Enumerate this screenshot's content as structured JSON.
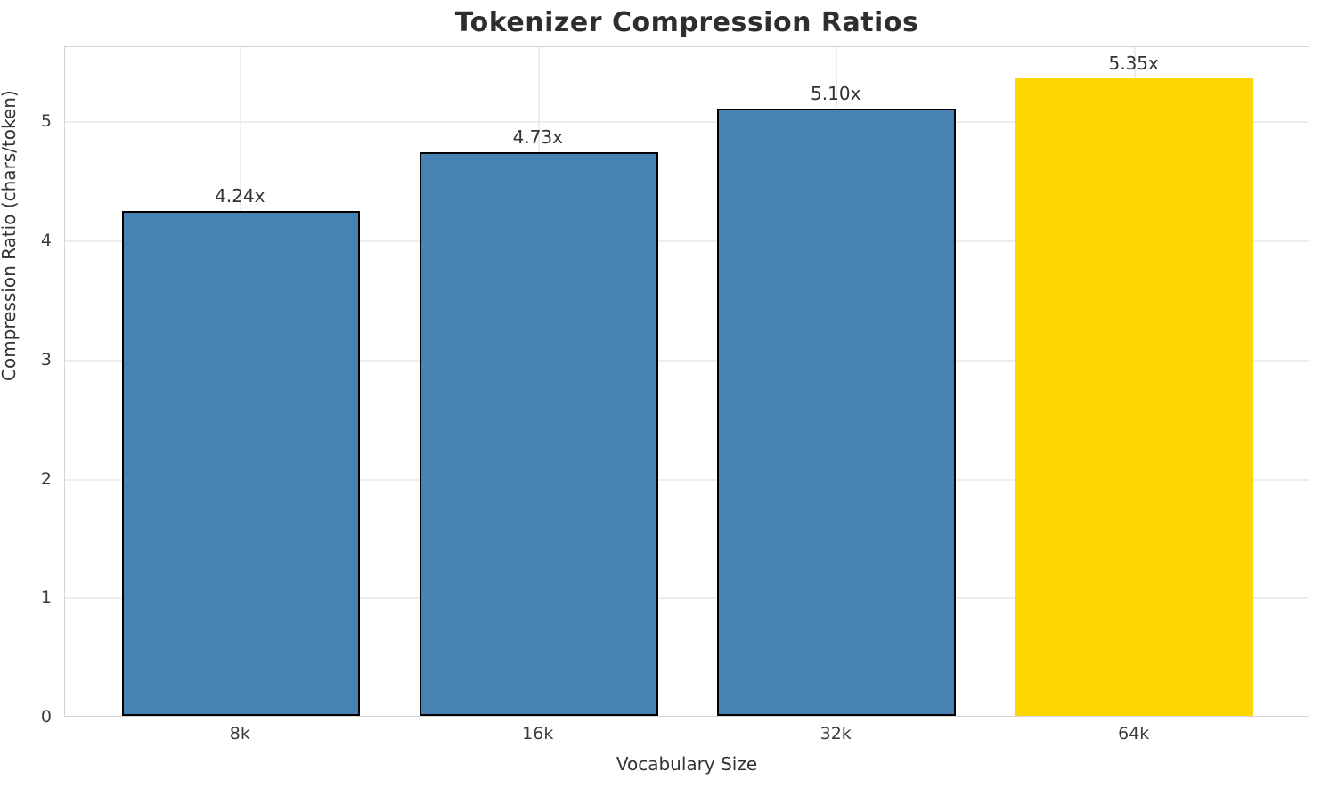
{
  "chart_data": {
    "type": "bar",
    "title": "Tokenizer Compression Ratios",
    "xlabel": "Vocabulary Size",
    "ylabel": "Compression Ratio (chars/token)",
    "categories": [
      "8k",
      "16k",
      "32k",
      "64k"
    ],
    "values": [
      4.24,
      4.73,
      5.1,
      5.35
    ],
    "bar_labels": [
      "4.24x",
      "4.73x",
      "5.10x",
      "5.35x"
    ],
    "bar_colors": [
      "#4682b4",
      "#4682b4",
      "#4682b4",
      "#ffd700"
    ],
    "bar_edgecolors": [
      "#000000",
      "#000000",
      "#000000",
      "none"
    ],
    "yticks": [
      "0",
      "1",
      "2",
      "3",
      "4",
      "5"
    ],
    "ylim": [
      0,
      5.63
    ],
    "xlim": [
      -0.59,
      3.59
    ],
    "bar_width": 0.8,
    "grid": true,
    "legend_position": "none",
    "colors": {
      "bar_default": "#4682b4",
      "bar_highlight": "#ffd700",
      "bar_edge": "#000000",
      "grid": "#ededed",
      "spine": "#d4d4d4",
      "title_text": "#2e2e2e",
      "tick_text": "#3c3c3c"
    }
  }
}
